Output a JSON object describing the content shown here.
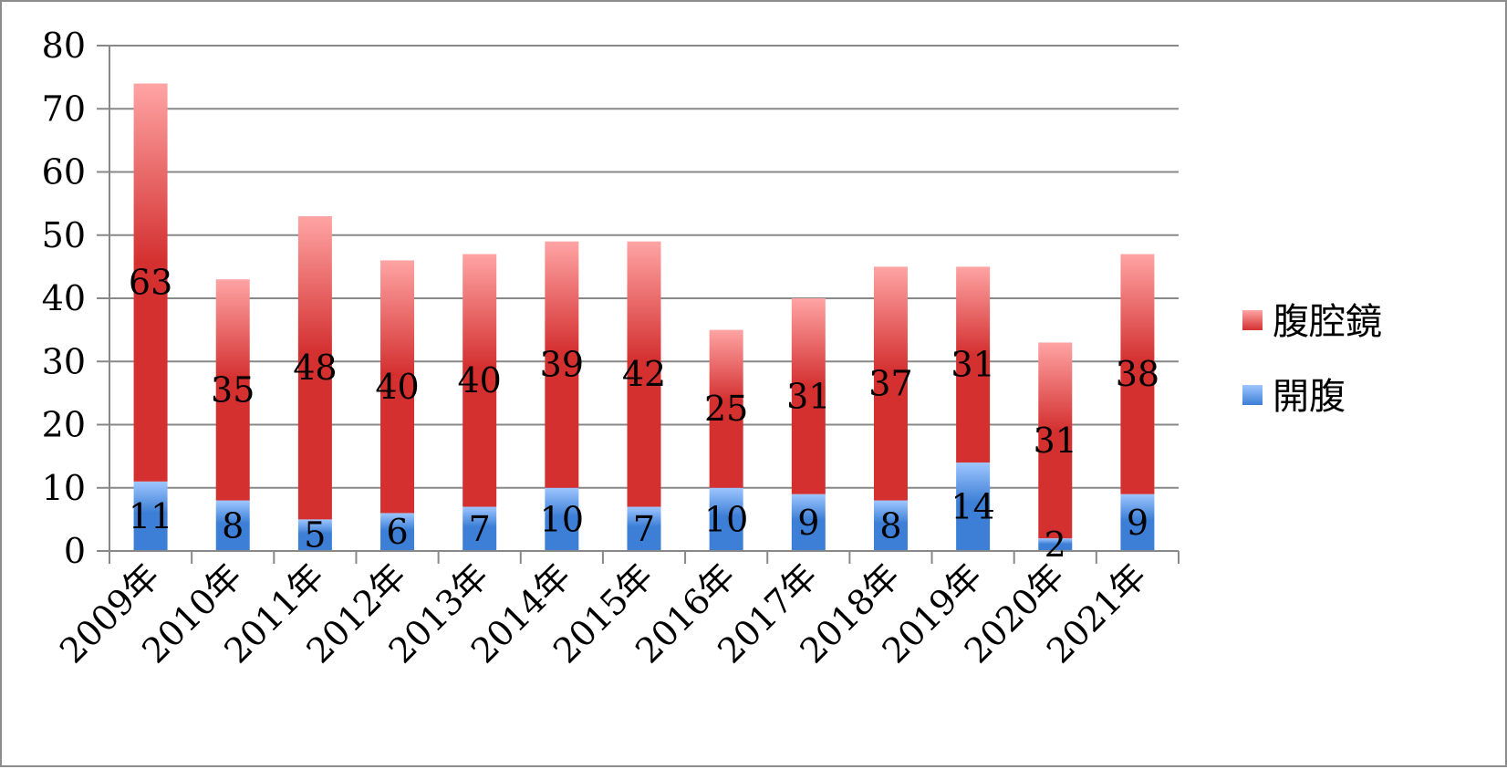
{
  "chart_data": {
    "type": "bar",
    "stacked": true,
    "categories": [
      "2009年",
      "2010年",
      "2011年",
      "2012年",
      "2013年",
      "2014年",
      "2015年",
      "2016年",
      "2017年",
      "2018年",
      "2019年",
      "2020年",
      "2021年"
    ],
    "series": [
      {
        "name": "開腹",
        "values": [
          11,
          8,
          5,
          6,
          7,
          10,
          7,
          10,
          9,
          8,
          14,
          2,
          9
        ],
        "color_light": "#9ec6ff",
        "color_dark": "#3d7fd6"
      },
      {
        "name": "腹腔鏡",
        "values": [
          63,
          35,
          48,
          40,
          40,
          39,
          42,
          25,
          31,
          37,
          31,
          31,
          38
        ],
        "color_light": "#ffa4a4",
        "color_dark": "#d43030"
      }
    ],
    "ylim": [
      0,
      80
    ],
    "yticks": [
      "0",
      "10",
      "20",
      "30",
      "40",
      "50",
      "60",
      "70",
      "80"
    ],
    "grid": true,
    "legend_position": "right",
    "legend_order": [
      "腹腔鏡",
      "開腹"
    ],
    "gridline_color": "#888888",
    "axis_color": "#888888"
  }
}
